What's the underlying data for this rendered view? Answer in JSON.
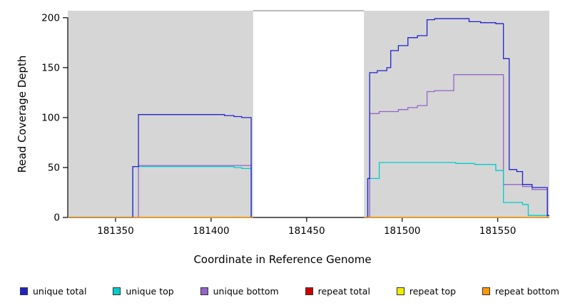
{
  "chart_data": {
    "type": "line",
    "title": "",
    "xlabel": "Coordinate in Reference Genome",
    "ylabel": "Read Coverage Depth",
    "xlim": [
      181325,
      181577
    ],
    "ylim": [
      0,
      207
    ],
    "x_ticks": [
      181350,
      181400,
      181450,
      181500,
      181550
    ],
    "y_ticks": [
      0,
      50,
      100,
      150,
      200
    ],
    "panel_background": "#D6D6D6",
    "gap_region": [
      181422,
      181480
    ],
    "panel_regions": [
      [
        181325,
        181422
      ],
      [
        181480,
        181577
      ]
    ],
    "grid": false,
    "legend_position": "bottom",
    "series": [
      {
        "name": "unique total",
        "color": "#2222CC",
        "segments": [
          {
            "points": [
              [
                181325,
                0
              ],
              [
                181359,
                51
              ],
              [
                181362,
                103
              ],
              [
                181407,
                102
              ],
              [
                181412,
                101
              ],
              [
                181416,
                100
              ],
              [
                181421,
                0
              ]
            ],
            "end": 181422
          },
          {
            "points": [
              [
                181480,
                0
              ],
              [
                181482,
                39
              ],
              [
                181483,
                145
              ],
              [
                181487,
                147
              ],
              [
                181492,
                150
              ],
              [
                181494,
                167
              ],
              [
                181498,
                172
              ],
              [
                181503,
                180
              ],
              [
                181508,
                182
              ],
              [
                181513,
                198
              ],
              [
                181517,
                199
              ],
              [
                181535,
                196
              ],
              [
                181541,
                195
              ],
              [
                181549,
                194
              ],
              [
                181553,
                159
              ],
              [
                181556,
                48
              ],
              [
                181560,
                46
              ],
              [
                181563,
                33
              ],
              [
                181568,
                30
              ],
              [
                181576,
                2
              ]
            ],
            "end": 181577
          }
        ]
      },
      {
        "name": "unique top",
        "color": "#00CDCD",
        "segments": [
          {
            "points": [
              [
                181325,
                0
              ],
              [
                181359,
                51
              ],
              [
                181412,
                50
              ],
              [
                181416,
                49
              ],
              [
                181421,
                0
              ]
            ],
            "end": 181422
          },
          {
            "points": [
              [
                181480,
                0
              ],
              [
                181482,
                39
              ],
              [
                181488,
                55
              ],
              [
                181528,
                54
              ],
              [
                181538,
                53
              ],
              [
                181549,
                47
              ],
              [
                181553,
                15
              ],
              [
                181563,
                13
              ],
              [
                181566,
                2
              ]
            ],
            "end": 181577
          }
        ]
      },
      {
        "name": "unique bottom",
        "color": "#9465C8",
        "segments": [
          {
            "points": [
              [
                181325,
                0
              ],
              [
                181362,
                52
              ],
              [
                181421,
                0
              ]
            ],
            "end": 181422
          },
          {
            "points": [
              [
                181480,
                0
              ],
              [
                181483,
                104
              ],
              [
                181488,
                106
              ],
              [
                181498,
                108
              ],
              [
                181503,
                110
              ],
              [
                181508,
                112
              ],
              [
                181513,
                126
              ],
              [
                181517,
                127
              ],
              [
                181527,
                143
              ],
              [
                181553,
                33
              ],
              [
                181563,
                31
              ],
              [
                181568,
                28
              ],
              [
                181576,
                0
              ]
            ],
            "end": 181577
          }
        ]
      },
      {
        "name": "repeat total",
        "color": "#CC0000",
        "segments": [
          {
            "points": [
              [
                181325,
                0
              ]
            ],
            "end": 181422
          },
          {
            "points": [
              [
                181480,
                0
              ]
            ],
            "end": 181577
          }
        ]
      },
      {
        "name": "repeat top",
        "color": "#EEEE00",
        "segments": [
          {
            "points": [
              [
                181325,
                0
              ]
            ],
            "end": 181422
          },
          {
            "points": [
              [
                181480,
                0
              ]
            ],
            "end": 181577
          }
        ]
      },
      {
        "name": "repeat bottom",
        "color": "#FF9900",
        "segments": [
          {
            "points": [
              [
                181325,
                0
              ]
            ],
            "end": 181422
          },
          {
            "points": [
              [
                181480,
                0
              ]
            ],
            "end": 181577
          }
        ]
      }
    ]
  },
  "legend": {
    "items": [
      {
        "label": "unique total",
        "color": "#2222CC"
      },
      {
        "label": "unique top",
        "color": "#00CDCD"
      },
      {
        "label": "unique bottom",
        "color": "#9465C8"
      },
      {
        "label": "repeat total",
        "color": "#CC0000"
      },
      {
        "label": "repeat top",
        "color": "#EEEE00"
      },
      {
        "label": "repeat bottom",
        "color": "#FF9900"
      }
    ]
  }
}
